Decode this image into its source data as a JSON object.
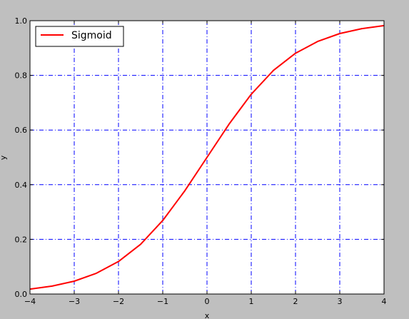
{
  "chart_data": {
    "type": "line",
    "xlabel": "x",
    "ylabel": "y",
    "xlim": [
      -4,
      4
    ],
    "ylim": [
      0.0,
      1.0
    ],
    "x_ticks": [
      -4,
      -3,
      -2,
      -1,
      0,
      1,
      2,
      3,
      4
    ],
    "x_tick_labels": [
      "−4",
      "−3",
      "−2",
      "−1",
      "0",
      "1",
      "2",
      "3",
      "4"
    ],
    "y_ticks": [
      0.0,
      0.2,
      0.4,
      0.6,
      0.8,
      1.0
    ],
    "y_tick_labels": [
      "0.0",
      "0.2",
      "0.4",
      "0.6",
      "0.8",
      "1.0"
    ],
    "grid": true,
    "grid_color": "#0000ff",
    "background_color": "#bfbfbf",
    "plot_background": "#ffffff",
    "legend": {
      "location": "upper-left"
    },
    "series": [
      {
        "name": "Sigmoid",
        "color": "#ff0000",
        "x": [
          -4,
          -3.5,
          -3,
          -2.5,
          -2,
          -1.5,
          -1,
          -0.5,
          0,
          0.5,
          1,
          1.5,
          2,
          2.5,
          3,
          3.5,
          4
        ],
        "y": [
          0.018,
          0.029,
          0.047,
          0.076,
          0.119,
          0.182,
          0.269,
          0.378,
          0.5,
          0.622,
          0.731,
          0.818,
          0.881,
          0.924,
          0.953,
          0.971,
          0.982
        ]
      }
    ]
  }
}
